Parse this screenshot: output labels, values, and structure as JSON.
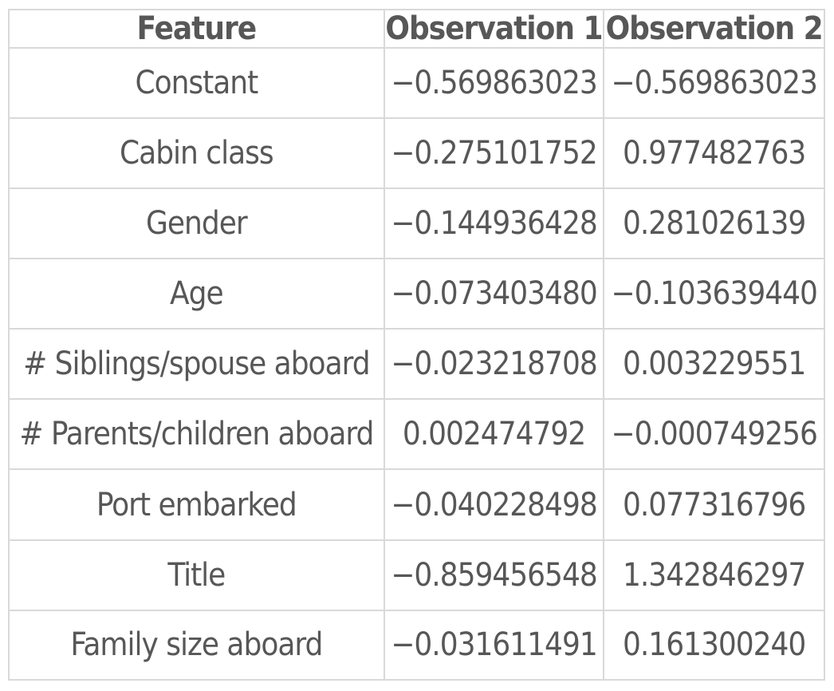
{
  "table": {
    "headers": [
      "Feature",
      "Observation 1",
      "Observation 2"
    ],
    "rows": [
      [
        "Constant",
        "−0.569863023",
        "−0.569863023"
      ],
      [
        "Cabin class",
        "−0.275101752",
        "0.977482763"
      ],
      [
        "Gender",
        "−0.144936428",
        "0.281026139"
      ],
      [
        "Age",
        "−0.073403480",
        "−0.103639440"
      ],
      [
        "# Siblings/spouse aboard",
        "−0.023218708",
        "0.003229551"
      ],
      [
        "# Parents/children aboard",
        "0.002474792",
        "−0.000749256"
      ],
      [
        "Port embarked",
        "−0.040228498",
        "0.077316796"
      ],
      [
        "Title",
        "−0.859456548",
        "1.342846297"
      ],
      [
        "Family size aboard",
        "−0.031611491",
        "0.161300240"
      ]
    ]
  }
}
